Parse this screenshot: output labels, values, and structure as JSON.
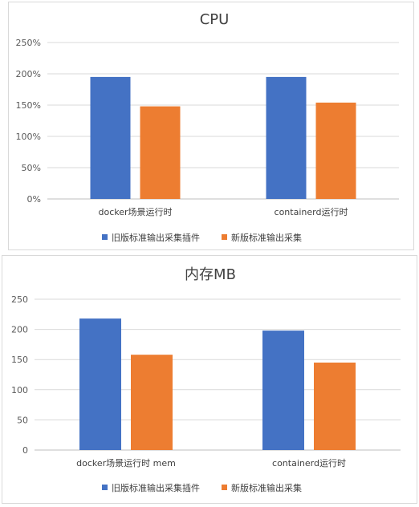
{
  "chart_data": [
    {
      "type": "bar",
      "title": "CPU",
      "categories": [
        "docker场景运行时",
        "containerd运行时"
      ],
      "series": [
        {
          "name": "旧版标准输出采集插件",
          "color": "#4472C4",
          "values": [
            195,
            195
          ]
        },
        {
          "name": "新版标准输出采集",
          "color": "#ED7D31",
          "values": [
            148,
            154
          ]
        }
      ],
      "ylim": [
        0,
        250
      ],
      "yticks": [
        "0%",
        "50%",
        "100%",
        "150%",
        "200%",
        "250%"
      ],
      "grid": true,
      "legend": "bottom"
    },
    {
      "type": "bar",
      "title": "内存MB",
      "categories": [
        "docker场景运行时 mem",
        "containerd运行时"
      ],
      "series": [
        {
          "name": "旧版标准输出采集插件",
          "color": "#4472C4",
          "values": [
            218,
            198
          ]
        },
        {
          "name": "新版标准输出采集",
          "color": "#ED7D31",
          "values": [
            158,
            145
          ]
        }
      ],
      "ylim": [
        0,
        250
      ],
      "yticks": [
        "0",
        "50",
        "100",
        "150",
        "200",
        "250"
      ],
      "grid": true,
      "legend": "bottom"
    }
  ]
}
